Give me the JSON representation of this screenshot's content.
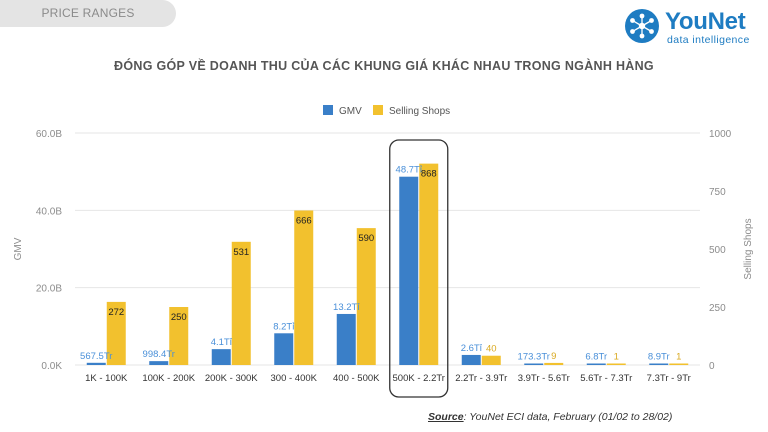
{
  "header": {
    "section_label": "PRICE RANGES",
    "logo_brand": "YouNet",
    "logo_tagline": "data intelligence"
  },
  "title": "ĐÓNG GÓP VỀ DOANH THU CỦA CÁC KHUNG GIÁ KHÁC NHAU TRONG NGÀNH HÀNG",
  "source": {
    "label": "Source",
    "text": ": YouNet ECI data, February (01/02 to 28/02)"
  },
  "colors": {
    "gmv": "#3a7fc8",
    "shops": "#f2c12e",
    "gmv_label": "#4a90d9",
    "shops_label": "#d9a920",
    "axis_text": "#8c8c8c",
    "grid": "#e6e6e6",
    "highlight_box": "#333333"
  },
  "chart_data": {
    "type": "bar",
    "legend_position": "top",
    "grid": true,
    "categories": [
      "1K - 100K",
      "100K - 200K",
      "200K - 300K",
      "300 - 400K",
      "400 - 500K",
      "500K - 2.2Tr",
      "2.2Tr - 3.9Tr",
      "3.9Tr - 5.6Tr",
      "5.6Tr - 7.3Tr",
      "7.3Tr - 9Tr"
    ],
    "y_left": {
      "label": "GMV",
      "range": [
        0,
        60000000000
      ],
      "ticks": [
        {
          "value": 0,
          "label": "0.0K"
        },
        {
          "value": 20000000000,
          "label": "20.0B"
        },
        {
          "value": 40000000000,
          "label": "40.0B"
        },
        {
          "value": 60000000000,
          "label": "60.0B"
        }
      ]
    },
    "y_right": {
      "label": "Selling Shops",
      "range": [
        0,
        1000
      ],
      "ticks": [
        {
          "value": 0,
          "label": "0"
        },
        {
          "value": 250,
          "label": "250"
        },
        {
          "value": 500,
          "label": "500"
        },
        {
          "value": 750,
          "label": "750"
        },
        {
          "value": 1000,
          "label": "1000"
        }
      ]
    },
    "series": [
      {
        "name": "GMV",
        "axis": "left",
        "values": [
          567500000,
          998400000,
          4100000000,
          8200000000,
          13200000000,
          48700000000,
          2600000000,
          173300000,
          6800000,
          8900000
        ],
        "labels": [
          "567.5Tr",
          "998.4Tr",
          "4.1Tỉ",
          "8.2Tỉ",
          "13.2Tỉ",
          "48.7Tỉ",
          "2.6Tỉ",
          "173.3Tr",
          "6.8Tr",
          "8.9Tr"
        ]
      },
      {
        "name": "Selling Shops",
        "axis": "right",
        "values": [
          272,
          250,
          531,
          666,
          590,
          868,
          40,
          9,
          1,
          1
        ],
        "labels": [
          "272",
          "250",
          "531",
          "666",
          "590",
          "868",
          "40",
          "9",
          "1",
          "1"
        ]
      }
    ],
    "highlight_category_index": 5
  }
}
